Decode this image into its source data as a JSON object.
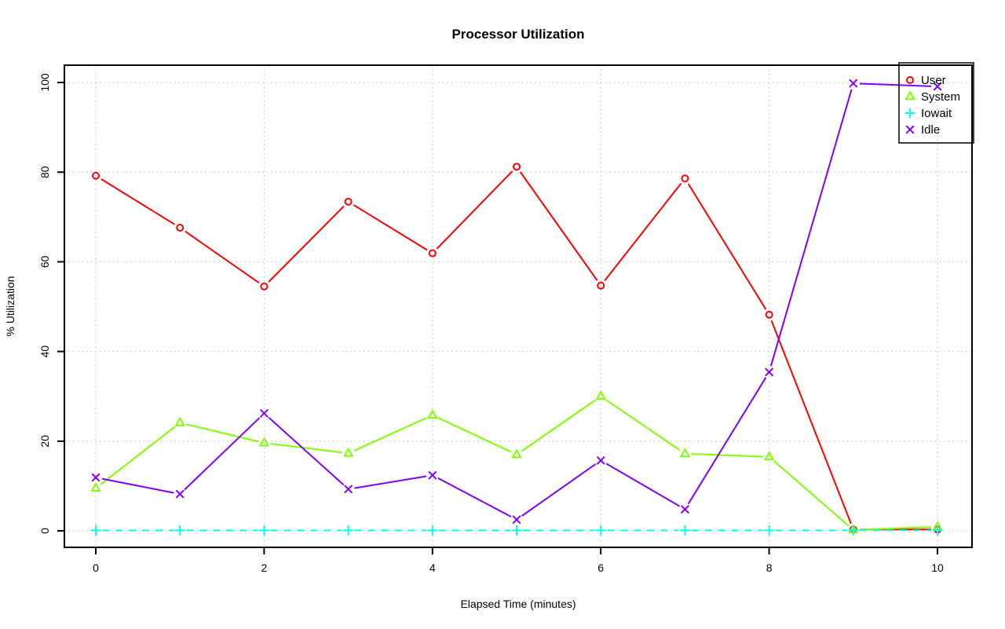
{
  "page": {
    "background": "#ffffff",
    "text_color": "#000000"
  },
  "chart_data": {
    "type": "line",
    "title": "Processor Utilization",
    "xlabel": "Elapsed Time (minutes)",
    "ylabel": "% Utilization",
    "xlim": [
      0,
      10
    ],
    "ylim": [
      0,
      100
    ],
    "x_ticks": [
      0,
      2,
      4,
      6,
      8,
      10
    ],
    "y_ticks": [
      0,
      20,
      40,
      60,
      80,
      100
    ],
    "grid": true,
    "grid_style": "dotted",
    "grid_color": "#c9c9c9",
    "axis_color": "#000000",
    "legend_position": "top-right",
    "x": [
      0,
      1,
      2,
      3,
      4,
      5,
      6,
      7,
      8,
      9,
      10
    ],
    "series": [
      {
        "name": "User",
        "color": "#FF0000",
        "marker": "circle",
        "linestyle": "solid",
        "values": [
          79.2,
          67.6,
          54.5,
          73.4,
          61.9,
          81.2,
          54.7,
          78.6,
          48.2,
          0.3,
          0.3
        ]
      },
      {
        "name": "System",
        "color": "#80FF00",
        "marker": "triangle",
        "linestyle": "solid",
        "values": [
          9.5,
          24.1,
          19.6,
          17.3,
          25.8,
          17.0,
          30.0,
          17.2,
          16.5,
          0.2,
          0.9
        ]
      },
      {
        "name": "Iowait",
        "color": "#00FFFF",
        "marker": "plus",
        "linestyle": "dashed",
        "values": [
          0.1,
          0.1,
          0.1,
          0.1,
          0.1,
          0.1,
          0.1,
          0.1,
          0.1,
          0.1,
          0.1
        ]
      },
      {
        "name": "Idle",
        "color": "#8000FF",
        "marker": "x",
        "linestyle": "solid",
        "values": [
          11.9,
          8.2,
          26.2,
          9.3,
          12.4,
          2.5,
          15.7,
          4.8,
          35.4,
          99.8,
          99.1
        ]
      }
    ]
  }
}
